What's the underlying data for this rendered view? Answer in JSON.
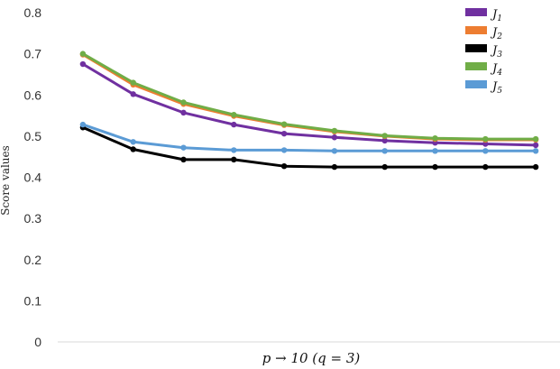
{
  "chart_data": {
    "type": "line",
    "title": "",
    "xlabel": "p → 10 (q = 3)",
    "ylabel": "Score values",
    "ylim": [
      0,
      0.8
    ],
    "yticks": [
      "0",
      "0.1",
      "0.2",
      "0.3",
      "0.4",
      "0.5",
      "0.6",
      "0.7",
      "0.8"
    ],
    "x": [
      1,
      2,
      3,
      4,
      5,
      6,
      7,
      8,
      9,
      10
    ],
    "grid": false,
    "legend_position": "top-right",
    "series": [
      {
        "name": "J1",
        "color": "#7030a0",
        "values": [
          0.675,
          0.602,
          0.557,
          0.528,
          0.506,
          0.497,
          0.489,
          0.484,
          0.481,
          0.478
        ]
      },
      {
        "name": "J2",
        "color": "#ed7d31",
        "values": [
          0.698,
          0.625,
          0.578,
          0.549,
          0.527,
          0.511,
          0.5,
          0.493,
          0.491,
          0.491
        ]
      },
      {
        "name": "J3",
        "color": "#000000",
        "values": [
          0.521,
          0.468,
          0.443,
          0.443,
          0.427,
          0.425,
          0.425,
          0.425,
          0.425,
          0.425
        ]
      },
      {
        "name": "J4",
        "color": "#70ad47",
        "values": [
          0.7,
          0.63,
          0.582,
          0.552,
          0.529,
          0.513,
          0.501,
          0.495,
          0.493,
          0.493
        ]
      },
      {
        "name": "J5",
        "color": "#5b9bd5",
        "values": [
          0.528,
          0.486,
          0.472,
          0.466,
          0.466,
          0.464,
          0.464,
          0.464,
          0.464,
          0.464
        ]
      }
    ]
  }
}
